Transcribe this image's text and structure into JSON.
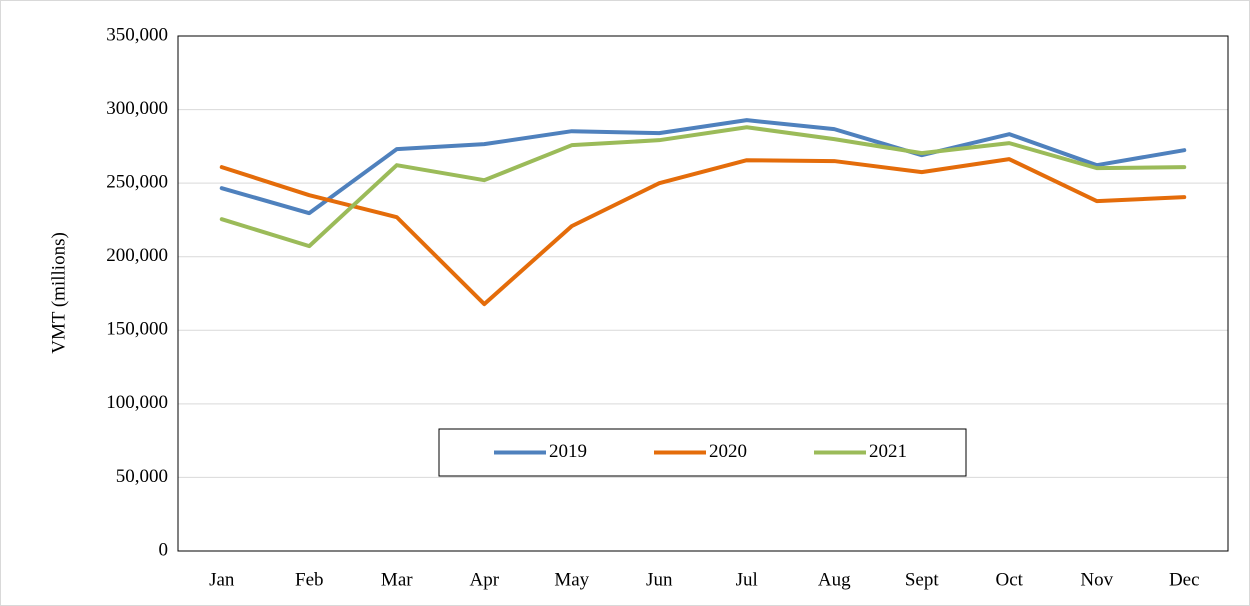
{
  "chart_data": {
    "type": "line",
    "y_label": "VMT (millions)",
    "categories": [
      "Jan",
      "Feb",
      "Mar",
      "Apr",
      "May",
      "Jun",
      "Jul",
      "Aug",
      "Sept",
      "Oct",
      "Nov",
      "Dec"
    ],
    "series": [
      {
        "name": "2019",
        "color": "#4f81bd",
        "values": [
          246600,
          229600,
          273100,
          276500,
          285300,
          284000,
          292800,
          286700,
          269000,
          283300,
          262200,
          272400
        ]
      },
      {
        "name": "2020",
        "color": "#e46c0a",
        "values": [
          260900,
          241800,
          226900,
          167800,
          220800,
          250000,
          265600,
          265000,
          257500,
          266300,
          237800,
          240500
        ]
      },
      {
        "name": "2021",
        "color": "#9bbb59",
        "values": [
          225500,
          207200,
          262200,
          252000,
          275800,
          279200,
          288000,
          279900,
          270400,
          277200,
          260200,
          260900
        ]
      }
    ],
    "ylim": [
      0,
      350000
    ],
    "yticks": [
      0,
      {
        "value": 50000,
        "label": "50,000"
      },
      {
        "value": 100000,
        "label": "100,000"
      },
      {
        "value": 150000,
        "label": "150,000"
      },
      {
        "value": 200000,
        "label": "200,000"
      },
      {
        "value": 250000,
        "label": "250,000"
      },
      {
        "value": 300000,
        "label": "300,000"
      },
      {
        "value": 350000,
        "label": "350,000"
      }
    ],
    "grid": true,
    "legend": "bottom-center"
  }
}
